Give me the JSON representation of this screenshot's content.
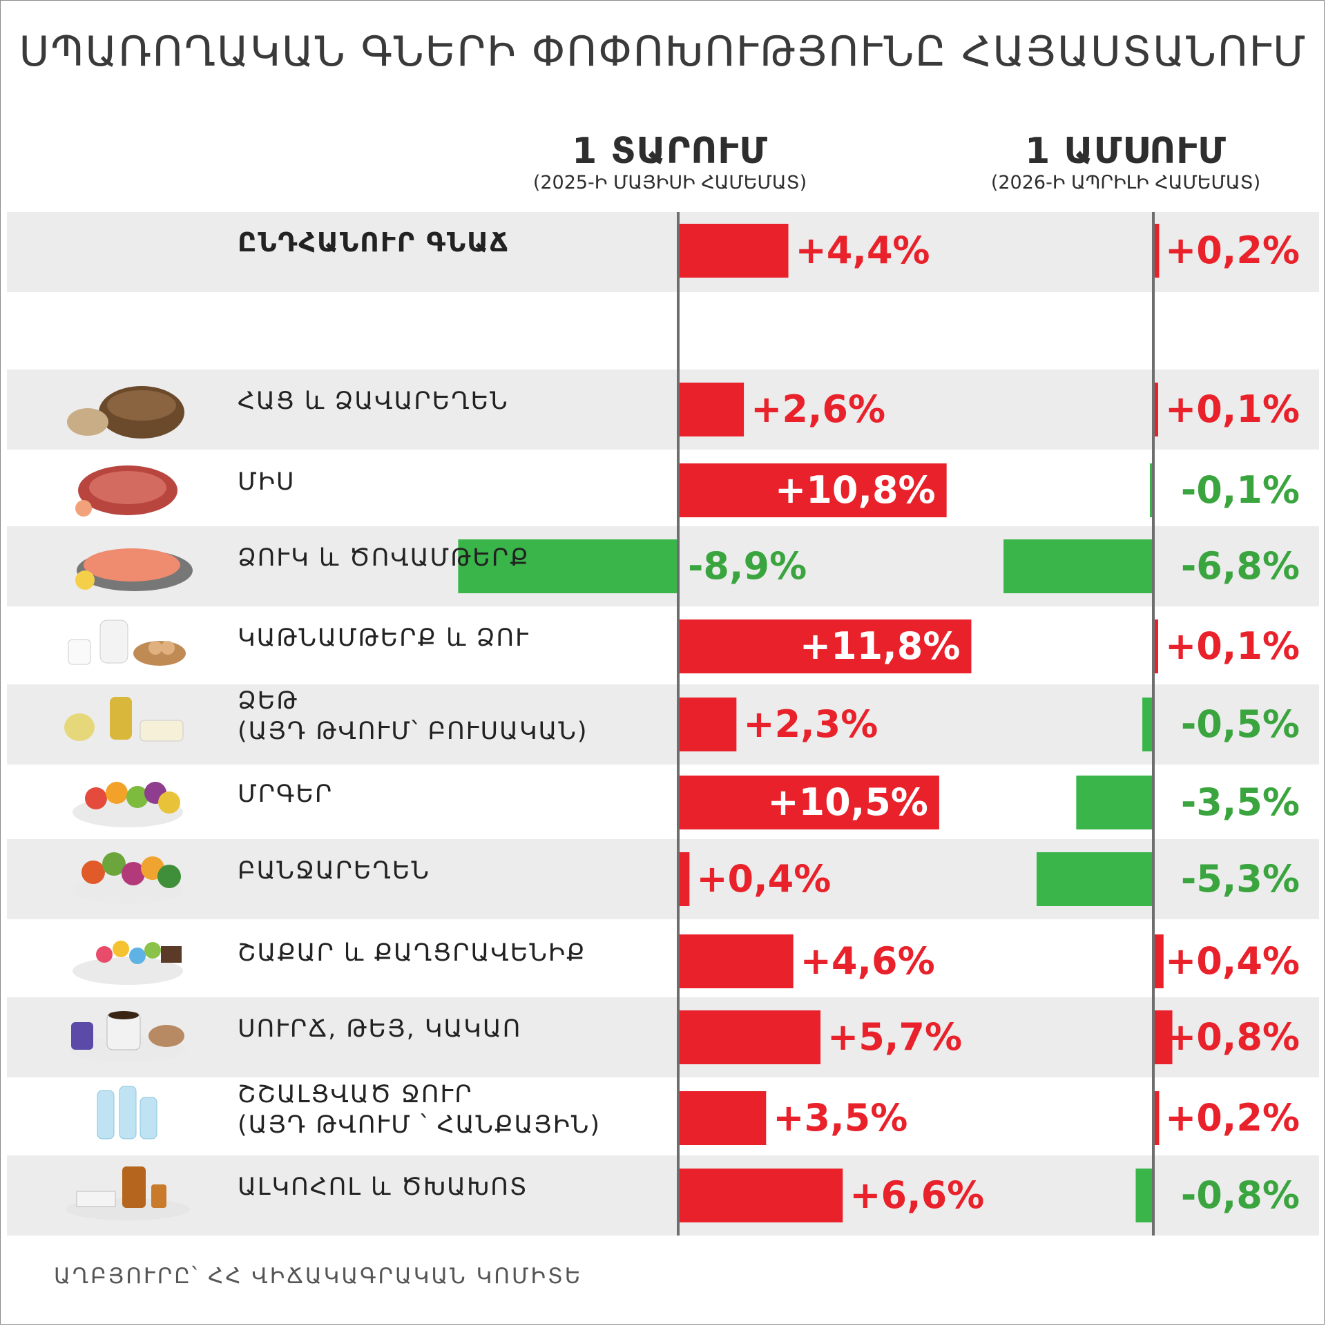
{
  "title": "ՍՊԱՌՈՂԱԿԱՆ ԳՆԵՐԻ ՓՈՓՈԽՈՒԹՅՈՒՆԸ ՀԱՅԱՍՏԱՆՈՒՄ",
  "columns": {
    "year": {
      "heading": "1 ՏԱՐՈՒՄ",
      "sub": "(2025-Ի ՄԱՅԻՍԻ ՀԱՄԵՄԱՏ)"
    },
    "month": {
      "heading": "1 ԱՄՍՈՒՄ",
      "sub": "(2026-Ի ԱՊՐԻԼԻ ՀԱՄԵՄԱՏ)"
    }
  },
  "source": "ԱՂԲՅՈՒՐԸ՝ ՀՀ ՎԻՃԱԿԱԳՐԱԿԱՆ ԿՈՄԻՏԵ",
  "colors": {
    "increase": "#e8212a",
    "decrease": "#3ab54a",
    "row_band": "#ececec",
    "axis": "#6e6e6e"
  },
  "chart_data": {
    "type": "bar",
    "orientation": "horizontal",
    "unit": "%",
    "categories": [
      "ԸՆԴՀԱՆՈՒՐ ԳՆԱՃ",
      "ՀԱՑ և ՁԱՎԱՐԵՂԵՆ",
      "ՄԻՍ",
      "ՁՈՒԿ և ԾՈՎԱՄԹԵՐՔ",
      "ԿԱԹՆԱՄԹԵՐՔ և ՁՈՒ",
      "ՁԵԹ\n(ԱՅԴ ԹՎՈՒՄ՝ ԲՈՒՍԱԿԱՆ)",
      "ՄՐԳԵՐ",
      "ԲԱՆՋԱՐԵՂԵՆ",
      "ՇԱՔԱՐ և ՔԱՂՑՐԱՎԵՆԻՔ",
      "ՍՈՒՐՃ, ԹԵՅ, ԿԱԿԱՈ",
      "ՇՇԱԼՑՎԱԾ ՋՈՒՐ\n(ԱՅԴ ԹՎՈՒՄ ՝ ՀԱՆՔԱՅԻՆ)",
      "ԱԼԿՈՀՈԼ և ԾԽԱԽՈՏ"
    ],
    "series": [
      {
        "name": "1 ՏԱՐՈՒՄ",
        "values": [
          4.4,
          2.6,
          10.8,
          -8.9,
          11.8,
          2.3,
          10.5,
          0.4,
          4.6,
          5.7,
          3.5,
          6.6
        ],
        "labels": [
          "+4,4%",
          "+2,6%",
          "+10,8%",
          "-8,9%",
          "+11,8%",
          "+2,3%",
          "+10,5%",
          "+0,4%",
          "+4,6%",
          "+5,7%",
          "+3,5%",
          "+6,6%"
        ]
      },
      {
        "name": "1 ԱՄՍՈՒՄ",
        "values": [
          0.2,
          0.1,
          -0.1,
          -6.8,
          0.1,
          -0.5,
          -3.5,
          -5.3,
          0.4,
          0.8,
          0.2,
          -0.8
        ],
        "labels": [
          "+0,2%",
          "+0,1%",
          "-0,1%",
          "-6,8%",
          "+0,1%",
          "-0,5%",
          "-3,5%",
          "-5,3%",
          "+0,4%",
          "+0,8%",
          "+0,2%",
          "-0,8%"
        ]
      }
    ]
  },
  "icons": [
    "none",
    "bread-icon",
    "steak-icon",
    "salmon-icon",
    "dairy-eggs-icon",
    "oil-butter-icon",
    "fruit-icon",
    "vegetables-icon",
    "sweets-icon",
    "coffee-tea-icon",
    "water-bottles-icon",
    "liquor-tobacco-icon"
  ]
}
